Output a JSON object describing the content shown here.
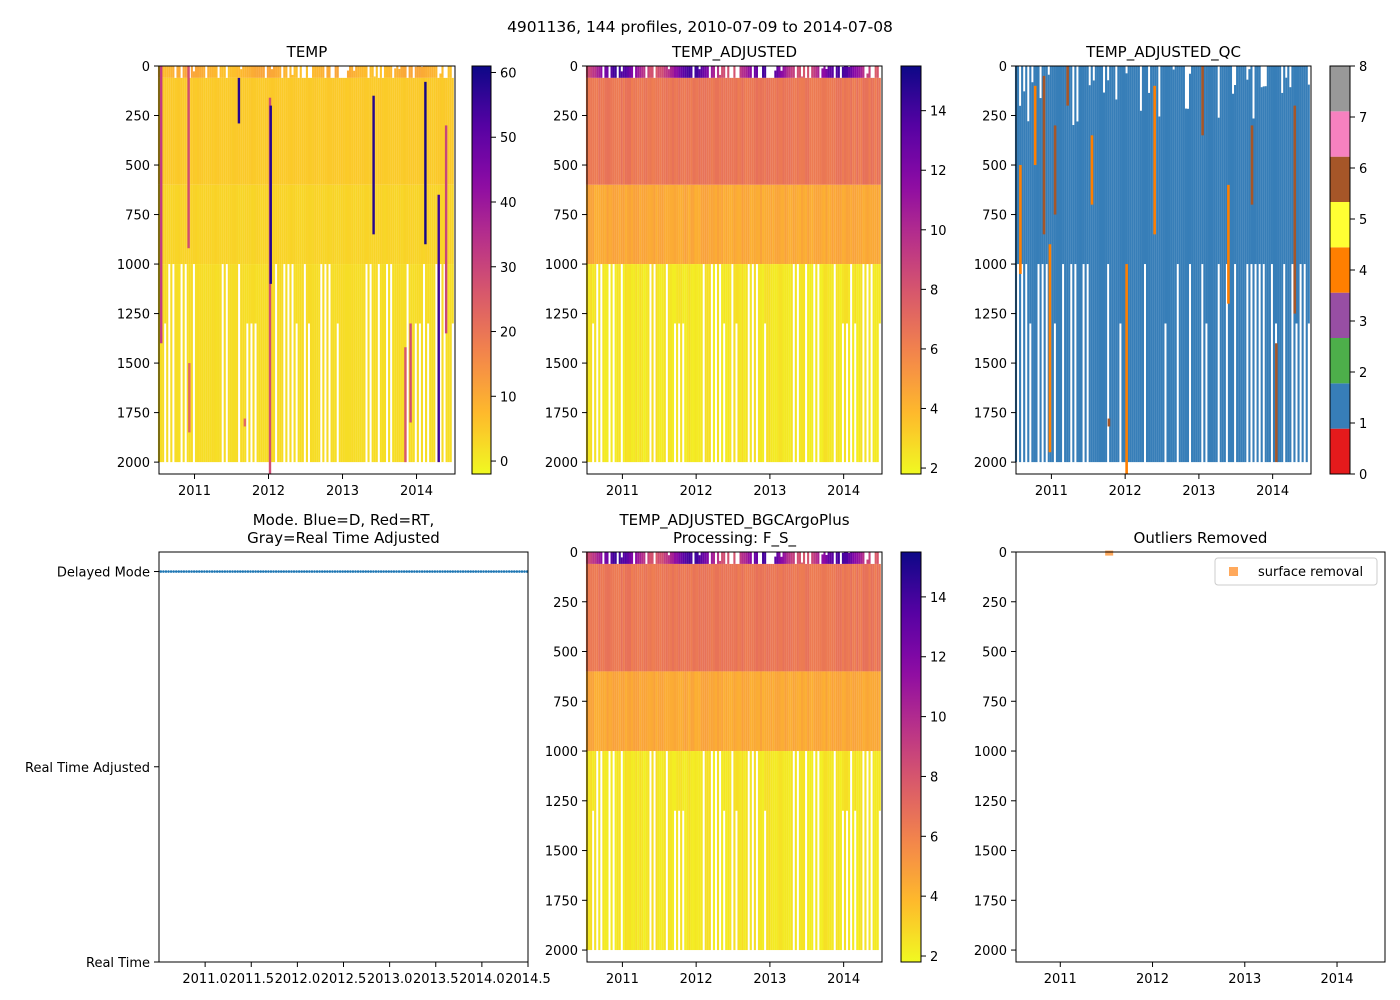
{
  "suptitle": "4901136, 144 profiles, 2010-07-09 to 2014-07-08",
  "chart_data": [
    {
      "id": "temp",
      "type": "heatmap",
      "title": "TEMP",
      "x_ticks": [
        "2011",
        "2012",
        "2013",
        "2014"
      ],
      "x_tick_values": [
        2011,
        2012,
        2013,
        2014
      ],
      "xlim": [
        2010.52,
        2014.52
      ],
      "ylim": [
        2060,
        0
      ],
      "y_ticks": [
        "0",
        "250",
        "500",
        "750",
        "1000",
        "1250",
        "1500",
        "1750",
        "2000"
      ],
      "colormap": "plasma_r",
      "colorbar": {
        "range": [
          -2,
          61
        ],
        "ticks": [
          "0",
          "10",
          "20",
          "30",
          "40",
          "50",
          "60"
        ],
        "tick_values": [
          0,
          10,
          20,
          30,
          40,
          50,
          60
        ]
      },
      "base_values": {
        "surface": 11,
        "upper": 5,
        "mid": 3.5,
        "deep": 2.2
      },
      "spikes": [
        {
          "x": 2010.55,
          "top": 0,
          "bottom": 1400,
          "value": 32
        },
        {
          "x": 2010.92,
          "top": 0,
          "bottom": 920,
          "value": 28
        },
        {
          "x": 2010.93,
          "top": 1500,
          "bottom": 1850,
          "value": 22
        },
        {
          "x": 2011.6,
          "top": 60,
          "bottom": 290,
          "value": 58
        },
        {
          "x": 2011.68,
          "top": 1780,
          "bottom": 1820,
          "value": 22
        },
        {
          "x": 2012.02,
          "top": 160,
          "bottom": 2060,
          "value": 28
        },
        {
          "x": 2012.03,
          "top": 200,
          "bottom": 1100,
          "value": 58
        },
        {
          "x": 2013.42,
          "top": 150,
          "bottom": 850,
          "value": 58
        },
        {
          "x": 2013.85,
          "top": 1420,
          "bottom": 2000,
          "value": 26
        },
        {
          "x": 2013.92,
          "top": 1300,
          "bottom": 1800,
          "value": 28
        },
        {
          "x": 2014.12,
          "top": 80,
          "bottom": 900,
          "value": 60
        },
        {
          "x": 2014.3,
          "top": 650,
          "bottom": 2000,
          "value": 55
        },
        {
          "x": 2014.4,
          "top": 300,
          "bottom": 1350,
          "value": 30
        }
      ]
    },
    {
      "id": "temp_adjusted",
      "type": "heatmap",
      "title": "TEMP_ADJUSTED",
      "x_ticks": [
        "2011",
        "2012",
        "2013",
        "2014"
      ],
      "x_tick_values": [
        2011,
        2012,
        2013,
        2014
      ],
      "xlim": [
        2010.52,
        2014.52
      ],
      "ylim": [
        2060,
        0
      ],
      "y_ticks": [
        "0",
        "250",
        "500",
        "750",
        "1000",
        "1250",
        "1500",
        "1750",
        "2000"
      ],
      "colormap": "plasma_r",
      "colorbar": {
        "range": [
          1.8,
          15.5
        ],
        "ticks": [
          "2",
          "4",
          "6",
          "8",
          "10",
          "12",
          "14"
        ],
        "tick_values": [
          2,
          4,
          6,
          8,
          10,
          12,
          14
        ]
      },
      "base_values": {
        "surface": 14,
        "upper": 6.5,
        "mid": 4.5,
        "deep": 2.4
      }
    },
    {
      "id": "temp_adjusted_qc",
      "type": "heatmap",
      "title": "TEMP_ADJUSTED_QC",
      "x_ticks": [
        "2011",
        "2012",
        "2013",
        "2014"
      ],
      "x_tick_values": [
        2011,
        2012,
        2013,
        2014
      ],
      "xlim": [
        2010.52,
        2014.52
      ],
      "ylim": [
        2060,
        0
      ],
      "y_ticks": [
        "0",
        "250",
        "500",
        "750",
        "1000",
        "1250",
        "1500",
        "1750",
        "2000"
      ],
      "colorbar": {
        "range": [
          0,
          8
        ],
        "ticks": [
          "0",
          "1",
          "2",
          "3",
          "4",
          "5",
          "6",
          "7",
          "8"
        ],
        "tick_values": [
          0,
          1,
          2,
          3,
          4,
          5,
          6,
          7,
          8
        ],
        "classes": [
          "#e41a1c",
          "#377eb8",
          "#4daf4a",
          "#984ea3",
          "#ff7f00",
          "#ffff33",
          "#a65628",
          "#f781bf",
          "#999999"
        ]
      },
      "base_class": 1,
      "qc_bars": [
        {
          "x": 2010.58,
          "top": 500,
          "bottom": 1050,
          "qc": 4
        },
        {
          "x": 2010.78,
          "top": 100,
          "bottom": 500,
          "qc": 4
        },
        {
          "x": 2010.9,
          "top": 50,
          "bottom": 850,
          "qc": 6
        },
        {
          "x": 2010.98,
          "top": 900,
          "bottom": 1950,
          "qc": 4
        },
        {
          "x": 2011.05,
          "top": 300,
          "bottom": 750,
          "qc": 6
        },
        {
          "x": 2011.22,
          "top": 0,
          "bottom": 200,
          "qc": 6
        },
        {
          "x": 2011.55,
          "top": 350,
          "bottom": 700,
          "qc": 4
        },
        {
          "x": 2011.78,
          "top": 1780,
          "bottom": 1820,
          "qc": 6
        },
        {
          "x": 2012.02,
          "top": 1000,
          "bottom": 2060,
          "qc": 4
        },
        {
          "x": 2012.4,
          "top": 100,
          "bottom": 850,
          "qc": 4
        },
        {
          "x": 2013.05,
          "top": 0,
          "bottom": 350,
          "qc": 6
        },
        {
          "x": 2013.4,
          "top": 600,
          "bottom": 1200,
          "qc": 4
        },
        {
          "x": 2013.72,
          "top": 300,
          "bottom": 700,
          "qc": 6
        },
        {
          "x": 2014.05,
          "top": 1400,
          "bottom": 2000,
          "qc": 6
        },
        {
          "x": 2014.3,
          "top": 200,
          "bottom": 1250,
          "qc": 6
        }
      ]
    },
    {
      "id": "mode",
      "type": "scatter",
      "title": "Mode. Blue=D, Red=RT,",
      "title_line2": "Gray=Real Time Adjusted",
      "xlim": [
        2010.5,
        2014.5
      ],
      "x_ticks": [
        "2011.0",
        "2011.5",
        "2012.0",
        "2012.5",
        "2013.0",
        "2013.5",
        "2014.0",
        "2014.5"
      ],
      "x_tick_values": [
        2011.0,
        2011.5,
        2012.0,
        2012.5,
        2013.0,
        2013.5,
        2014.0,
        2014.5
      ],
      "y_categories": [
        "Real Time",
        "Real Time Adjusted",
        "Delayed Mode"
      ],
      "ylim": [
        0,
        2.1
      ],
      "series": [
        {
          "name": "Delayed Mode",
          "color": "#1f77b4",
          "x_start": 2010.52,
          "x_end": 2014.49,
          "count": 144,
          "y": 2
        }
      ]
    },
    {
      "id": "temp_adjusted_bgc",
      "type": "heatmap",
      "title": "TEMP_ADJUSTED_BGCArgoPlus",
      "title_line2": "Processing: F_S_",
      "x_ticks": [
        "2011",
        "2012",
        "2013",
        "2014"
      ],
      "x_tick_values": [
        2011,
        2012,
        2013,
        2014
      ],
      "xlim": [
        2010.52,
        2014.52
      ],
      "ylim": [
        2060,
        0
      ],
      "y_ticks": [
        "0",
        "250",
        "500",
        "750",
        "1000",
        "1250",
        "1500",
        "1750",
        "2000"
      ],
      "colormap": "plasma_r",
      "colorbar": {
        "range": [
          1.8,
          15.5
        ],
        "ticks": [
          "2",
          "4",
          "6",
          "8",
          "10",
          "12",
          "14"
        ],
        "tick_values": [
          2,
          4,
          6,
          8,
          10,
          12,
          14
        ]
      },
      "base_values": {
        "surface": 14,
        "upper": 6.5,
        "mid": 4.5,
        "deep": 2.4
      }
    },
    {
      "id": "outliers",
      "type": "scatter",
      "title": "Outliers Removed",
      "x_ticks": [
        "2011",
        "2012",
        "2013",
        "2014"
      ],
      "x_tick_values": [
        2011,
        2012,
        2013,
        2014
      ],
      "xlim": [
        2010.52,
        2014.52
      ],
      "ylim": [
        2060,
        0
      ],
      "y_ticks": [
        "0",
        "250",
        "500",
        "750",
        "1000",
        "1250",
        "1500",
        "1750",
        "2000"
      ],
      "legend": "top-right",
      "series": [
        {
          "name": "surface removal",
          "color": "#ffa95c",
          "points": [
            {
              "x": 2011.53,
              "y": 3
            }
          ]
        }
      ]
    }
  ]
}
